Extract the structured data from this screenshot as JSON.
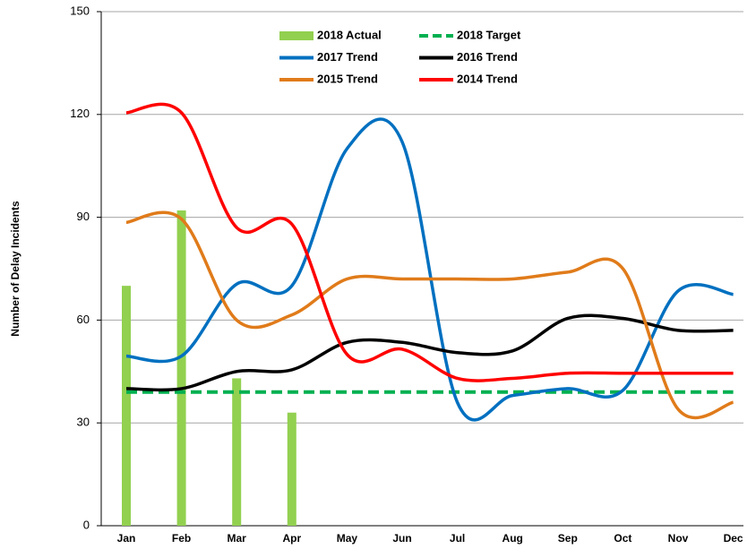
{
  "chart_data": {
    "type": "combo",
    "y_label": "Number of Delay Incidents",
    "categories": [
      "Jan",
      "Feb",
      "Mar",
      "Apr",
      "May",
      "Jun",
      "Jul",
      "Aug",
      "Sep",
      "Oct",
      "Nov",
      "Dec"
    ],
    "ylim": [
      0,
      150
    ],
    "yticks": [
      0,
      30,
      60,
      90,
      120,
      150
    ],
    "grid": true,
    "legend": "top",
    "series": [
      {
        "name": "2018 Actual",
        "type": "bar",
        "color": "#92d050",
        "values": [
          70,
          92,
          43,
          33,
          null,
          null,
          null,
          null,
          null,
          null,
          null,
          null
        ]
      },
      {
        "name": "2018 Target",
        "type": "line",
        "dashed": true,
        "color": "#00b050",
        "values": [
          39,
          39,
          39,
          39,
          39,
          39,
          39,
          39,
          39,
          39,
          39,
          39
        ]
      },
      {
        "name": "2017 Trend",
        "type": "line",
        "color": "#0070c0",
        "values": [
          49.5,
          49.5,
          70.5,
          70,
          110,
          112,
          36,
          38,
          40,
          39.5,
          68.5,
          67.5
        ]
      },
      {
        "name": "2016 Trend",
        "type": "line",
        "color": "#000000",
        "values": [
          40,
          40,
          45,
          45.5,
          53.5,
          53.5,
          50.5,
          51,
          60.5,
          60.5,
          57,
          57
        ]
      },
      {
        "name": "2015 Trend",
        "type": "line",
        "color": "#e07b1a",
        "values": [
          88.5,
          89.5,
          60,
          61.5,
          72,
          72,
          72,
          72,
          74,
          75,
          34,
          36
        ]
      },
      {
        "name": "2014 Trend",
        "type": "line",
        "color": "#ff0000",
        "values": [
          120.5,
          120.5,
          87,
          88,
          50,
          51.5,
          43,
          43,
          44.5,
          44.5,
          44.5,
          44.5
        ]
      }
    ]
  }
}
